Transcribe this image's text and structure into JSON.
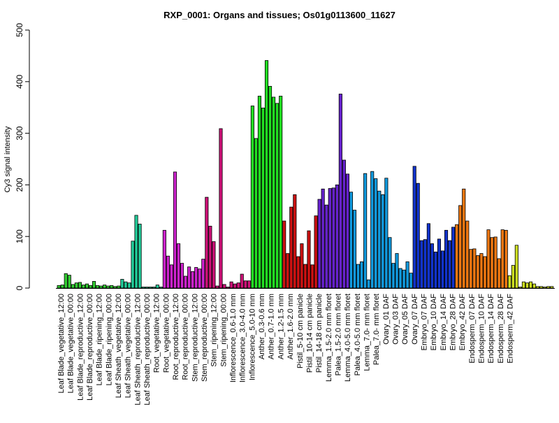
{
  "chart_data": {
    "type": "bar",
    "title": "RXP_0001: Organs and tissues; Os01g0113600_11627",
    "xlabel": "",
    "ylabel": "Cy3 signal intensity",
    "ylim": [
      0,
      500
    ],
    "yticks": [
      0,
      100,
      200,
      300,
      400,
      500
    ],
    "grid": false,
    "legend": "none",
    "labeled_categories": [
      "Leaf Blade_vegetative_12:00",
      "Leaf Blade_vegetative_00:00",
      "Leaf Blade_reproductive_12:00",
      "Leaf Blade_reproductive_00:00",
      "Leaf Blade_ripening_12:00",
      "Leaf Blade_ripening_00:00",
      "Leaf Sheath_vegetative_12:00",
      "Leaf Sheath_vegetative_00:00",
      "Leaf Sheath_reproductive_12:00",
      "Leaf Sheath_reproductive_00:00",
      "Root_vegetative_12:00",
      "Root_vegetative_00:00",
      "Root_reproductive_12:00",
      "Root_reproductive_00:00",
      "Stem_reproductive_12:00",
      "Stem_reproductive_00:00",
      "Stem_ripening_12:00",
      "Stem_ripening_00:00",
      "Inflorescence_0.6-1.0 mm",
      "Inflorescence_3.0-4.0 mm",
      "Inflorescence_5.0-10 mm",
      "Anther_0.3-0.6 mm",
      "Anther_0.7-1.0 mm",
      "Anther_1.2-1.5 mm",
      "Anther_1.6-2.0 mm",
      "Pistil_5-10 cm panicle",
      "Pistil_10-14 cm panicle",
      "Pistil_14-18 cm panicle",
      "Lemma_1.5-2.0 mm floret",
      "Palea_1.5-2.0 mm floret",
      "Lemma_4.0-5.0 mm floret",
      "Palea_4.0-5.0 mm floret",
      "Lemma_7.0- mm floret",
      "Palea_7.0- mm floret",
      "Ovary_01 DAF",
      "Ovary_03 DAF",
      "Ovary_05 DAF",
      "Ovary_07 DAF",
      "Embryo_07 DAF",
      "Embryo_10 DAF",
      "Embryo_14 DAF",
      "Embryo_28 DAF",
      "Embryo_42 DAF",
      "Endosperm_07 DAF",
      "Endosperm_10 DAF",
      "Endosperm_14 DAF",
      "Endosperm_28 DAF",
      "Endosperm_42 DAF"
    ],
    "groups": [
      {
        "color": "#33cc33",
        "values": [
          5,
          6,
          28,
          25,
          7,
          10,
          11,
          6,
          8,
          5,
          13,
          5,
          4,
          6,
          4,
          5,
          3,
          4
        ]
      },
      {
        "color": "#22cc99",
        "values": [
          17,
          12,
          10,
          91,
          141,
          124,
          2,
          2,
          2,
          2,
          6,
          2
        ]
      },
      {
        "color": "#cc22cc",
        "values": [
          112,
          62,
          45,
          225,
          86,
          48,
          23,
          41,
          32,
          40,
          37,
          56
        ]
      },
      {
        "color": "#cc1177",
        "values": [
          176,
          120,
          90,
          4,
          309,
          7,
          2,
          12,
          8,
          10,
          27,
          14,
          14
        ]
      },
      {
        "color": "#22dd22",
        "values": [
          353,
          290,
          372,
          349,
          441,
          391,
          370,
          358,
          372
        ]
      },
      {
        "color": "#cc1111",
        "values": [
          130,
          67,
          157,
          181,
          61,
          86,
          46,
          111,
          45,
          140
        ]
      },
      {
        "color": "#6622cc",
        "values": [
          172,
          192,
          161,
          193,
          194,
          200,
          376,
          248,
          221
        ]
      },
      {
        "color": "#1199dd",
        "values": [
          186,
          151,
          46,
          51,
          222,
          16,
          226,
          212,
          188,
          181,
          213,
          98,
          48,
          67,
          38,
          35,
          51,
          29
        ]
      },
      {
        "color": "#1133cc",
        "values": [
          236,
          203,
          92,
          94,
          125,
          86,
          70,
          95,
          72,
          112,
          92,
          118
        ]
      },
      {
        "color": "#ee7711",
        "values": [
          123,
          160,
          192,
          130,
          75,
          76,
          63,
          67,
          61,
          113,
          98,
          99,
          57,
          113,
          112
        ]
      },
      {
        "color": "#ccdd22",
        "values": [
          24,
          44,
          83,
          2,
          12,
          10,
          12,
          8,
          3,
          3,
          2,
          3,
          3
        ]
      }
    ]
  }
}
